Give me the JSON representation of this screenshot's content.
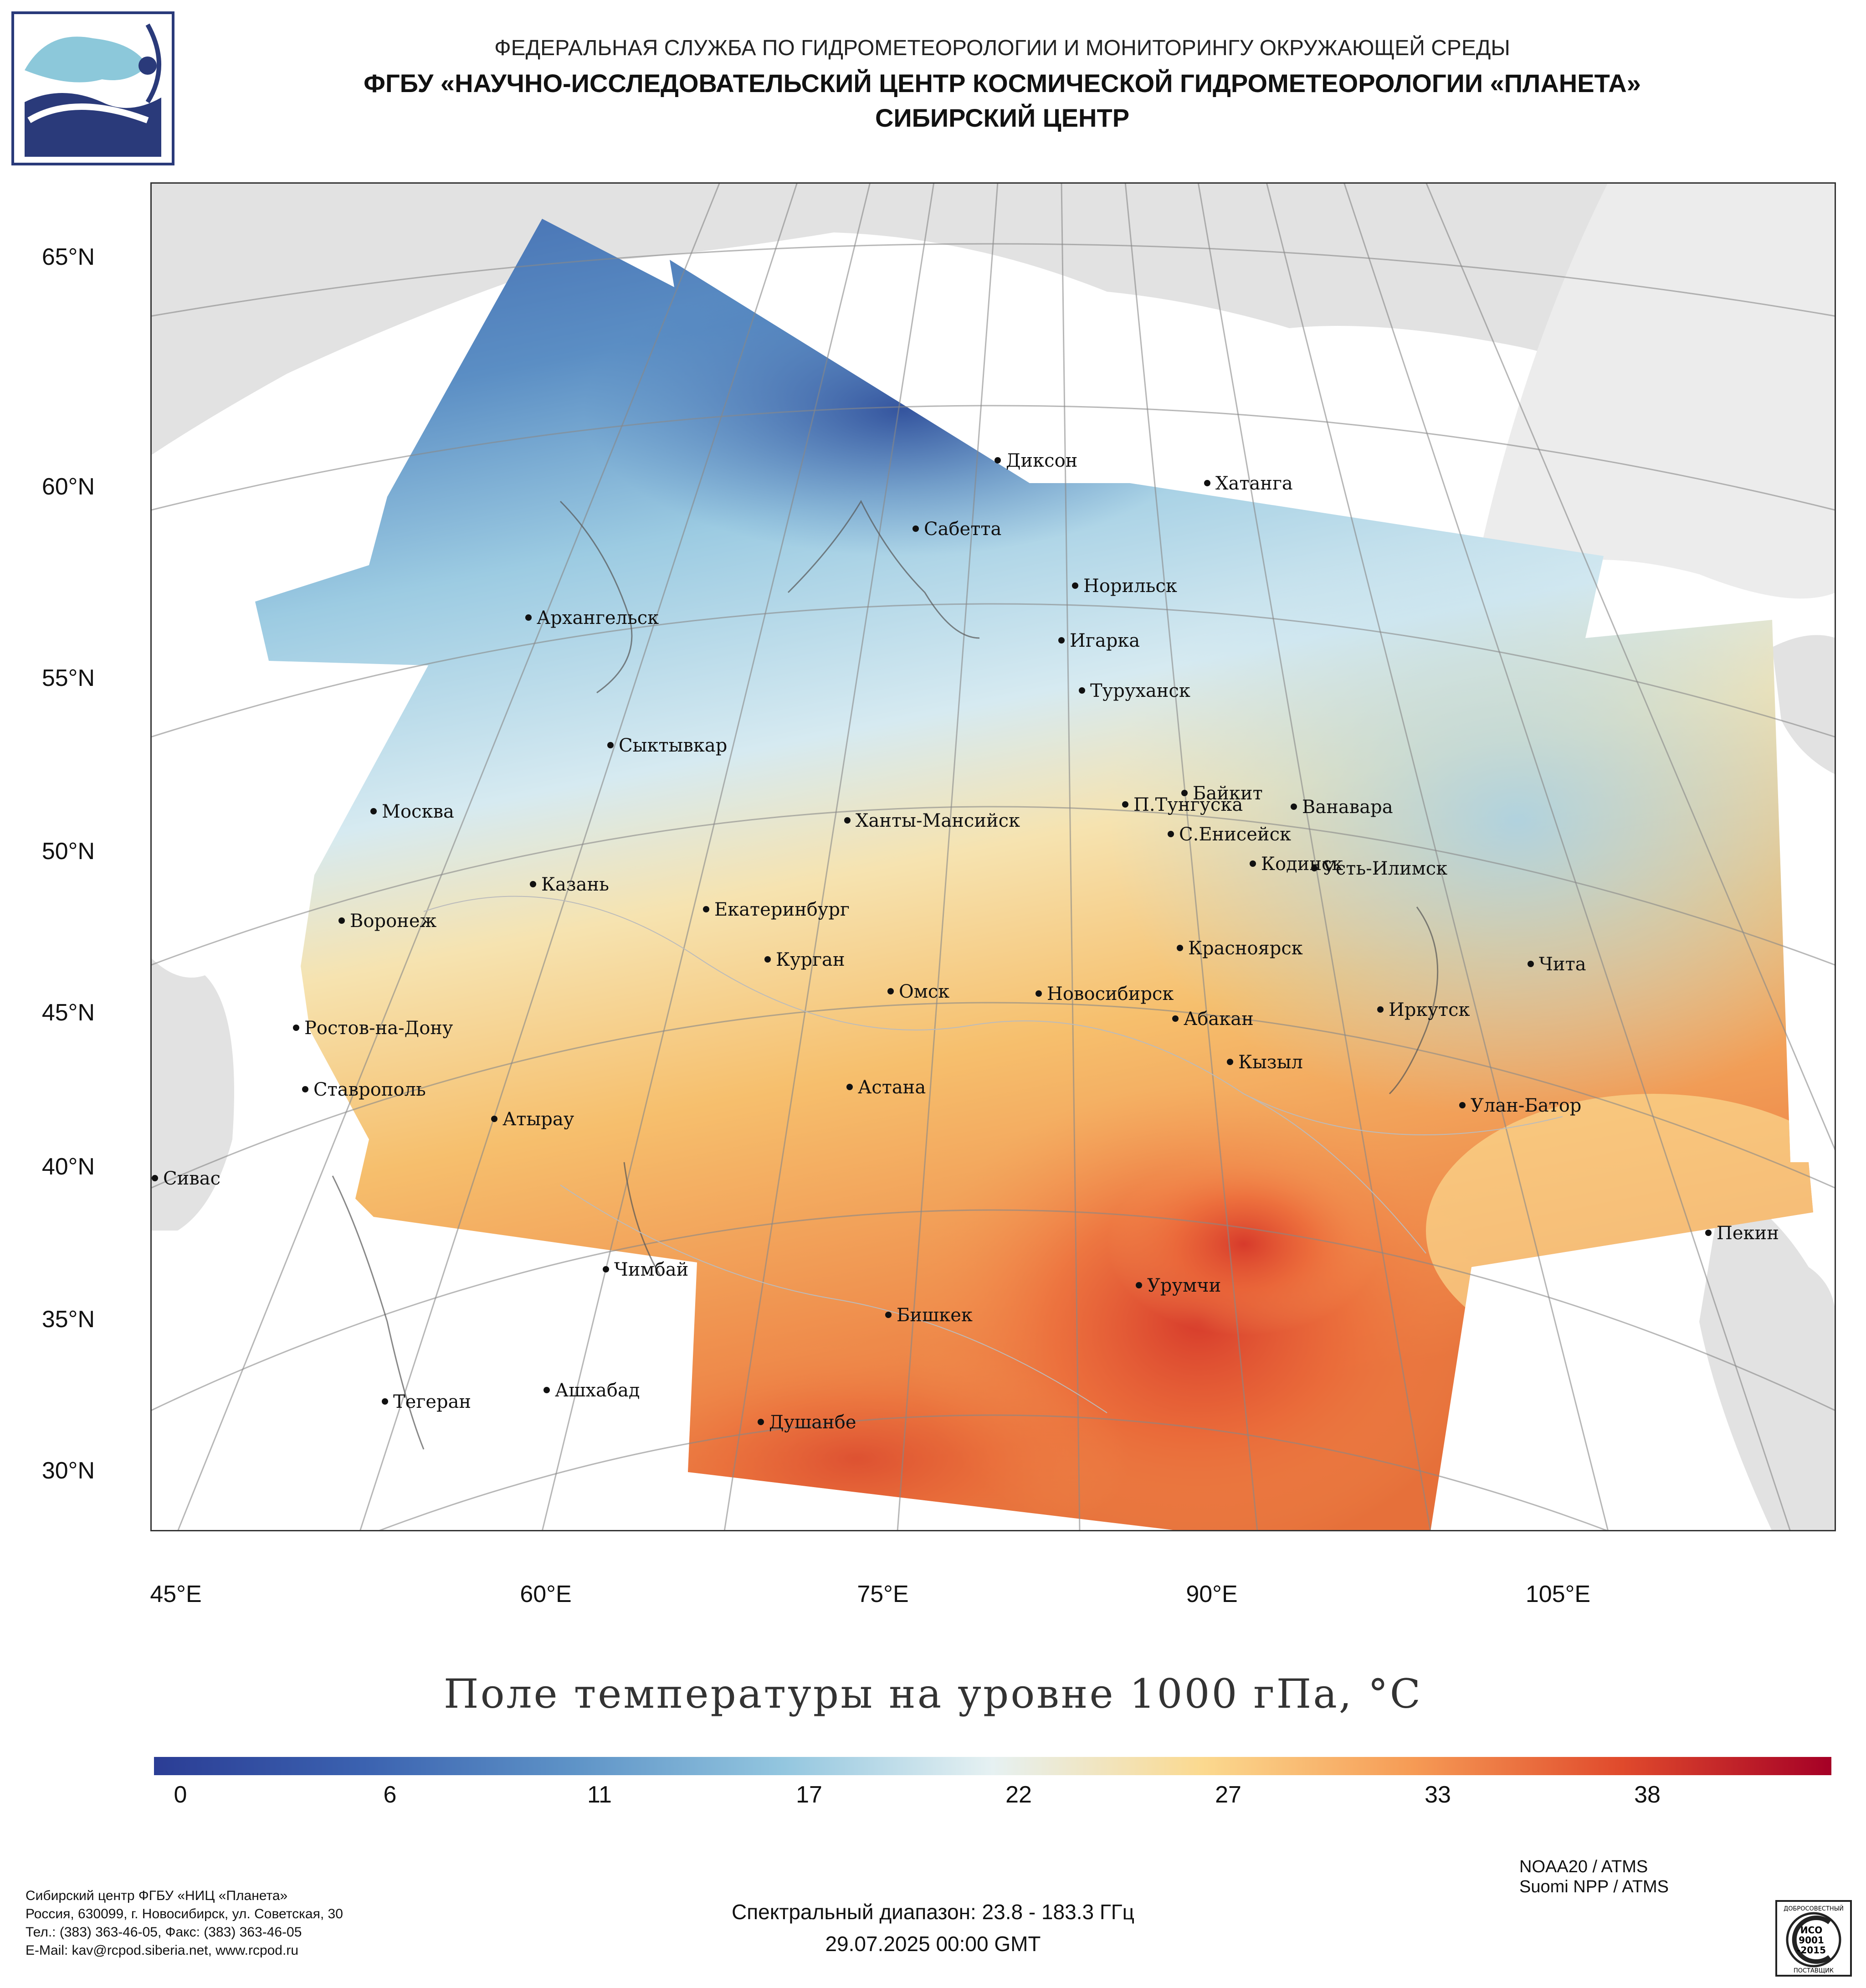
{
  "header": {
    "line1": "ФЕДЕРАЛЬНАЯ СЛУЖБА ПО ГИДРОМЕТЕОРОЛОГИИ И МОНИТОРИНГУ ОКРУЖАЮЩЕЙ СРЕДЫ",
    "line2": "ФГБУ «НАУЧНО-ИССЛЕДОВАТЕЛЬСКИЙ ЦЕНТР КОСМИЧЕСКОЙ ГИДРОМЕТЕОРОЛОГИИ «ПЛАНЕТА»",
    "line3": "СИБИРСКИЙ ЦЕНТР"
  },
  "map": {
    "lat_labels": [
      "65°N",
      "60°N",
      "55°N",
      "50°N",
      "45°N",
      "40°N",
      "35°N",
      "30°N"
    ],
    "lon_labels": [
      "45°E",
      "60°E",
      "75°E",
      "90°E",
      "105°E"
    ],
    "cities": [
      {
        "name": "Диксон"
      },
      {
        "name": "Хатанга"
      },
      {
        "name": "Сабетта"
      },
      {
        "name": "Норильск"
      },
      {
        "name": "Архангельск"
      },
      {
        "name": "Игарка"
      },
      {
        "name": "Туруханск"
      },
      {
        "name": "Сыктывкар"
      },
      {
        "name": "Байкит"
      },
      {
        "name": "Москва"
      },
      {
        "name": "Ханты-Мансийск"
      },
      {
        "name": "П.Тунгуска"
      },
      {
        "name": "Ванавара"
      },
      {
        "name": "С.Енисейск"
      },
      {
        "name": "Казань"
      },
      {
        "name": "Кодинск"
      },
      {
        "name": "Усть-Илимск"
      },
      {
        "name": "Воронеж"
      },
      {
        "name": "Екатеринбург"
      },
      {
        "name": "Красноярск"
      },
      {
        "name": "Курган"
      },
      {
        "name": "Чита"
      },
      {
        "name": "Омск"
      },
      {
        "name": "Новосибирск"
      },
      {
        "name": "Иркутск"
      },
      {
        "name": "Ростов-на-Дону"
      },
      {
        "name": "Абакан"
      },
      {
        "name": "Кызыл"
      },
      {
        "name": "Ставрополь"
      },
      {
        "name": "Астана"
      },
      {
        "name": "Улан-Батор"
      },
      {
        "name": "Атырау"
      },
      {
        "name": "Сивас"
      },
      {
        "name": "Пекин"
      },
      {
        "name": "Чимбай"
      },
      {
        "name": "Урумчи"
      },
      {
        "name": "Бишкек"
      },
      {
        "name": "Ашхабад"
      },
      {
        "name": "Тегеран"
      },
      {
        "name": "Душанбе"
      }
    ]
  },
  "title": "Поле температуры на уровне 1000 гПа, °С",
  "colorbar": {
    "ticks": [
      "0",
      "6",
      "11",
      "17",
      "22",
      "27",
      "33",
      "38"
    ],
    "colors": [
      "#2b3d95",
      "#3b62b0",
      "#5e93c7",
      "#93c6df",
      "#e6f1f2",
      "#fbd98f",
      "#f69b55",
      "#e04a2c",
      "#a50026"
    ]
  },
  "sensors": [
    "NOAA20 / ATMS",
    "Suomi NPP / ATMS"
  ],
  "spectral": "Спектральный диапазон: 23.8 - 183.3 ГГц",
  "datetime": "29.07.2025 00:00 GMT",
  "footer": {
    "lines": [
      "Сибирский центр ФГБУ «НИЦ «Планета»",
      "Россия, 630099, г. Новосибирск, ул. Советская, 30",
      "Тел.: (383) 363-46-05, Факс: (383) 363-46-05",
      "E-Mail: kav@rcpod.siberia.net, www.rcpod.ru"
    ]
  },
  "iso": {
    "top": "ДОБРОСОВЕСТНЫЙ",
    "l1": "ИСО",
    "l2": "9001",
    "l3": "-2015",
    "bottom": "ПОСТАВЩИК"
  }
}
